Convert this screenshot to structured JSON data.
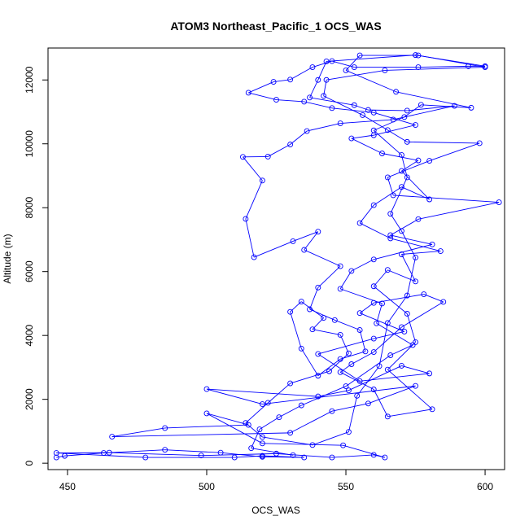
{
  "chart_data": {
    "type": "line",
    "title": "ATOM3 Northeast_Pacific_1 OCS_WAS",
    "xlabel": "OCS_WAS",
    "ylabel": "Altitude (m)",
    "xlim": [
      443,
      607
    ],
    "ylim": [
      -200,
      13000
    ],
    "x_ticks": [
      "450",
      "500",
      "550",
      "600"
    ],
    "y_ticks": [
      "0",
      "2000",
      "4000",
      "6000",
      "8000",
      "10000",
      "12000"
    ],
    "grid": false,
    "legend": "none",
    "series_color": "#0000ff",
    "series": [
      {
        "values": [
          [
            446,
            180
          ],
          [
            449,
            230
          ],
          [
            463,
            320
          ],
          [
            485,
            420
          ],
          [
            505,
            330
          ],
          [
            520,
            200
          ],
          [
            535,
            180
          ],
          [
            520,
            230
          ],
          [
            510,
            180
          ],
          [
            478,
            180
          ],
          [
            446,
            320
          ],
          [
            465,
            330
          ],
          [
            498,
            240
          ],
          [
            525,
            300
          ],
          [
            545,
            180
          ],
          [
            560,
            260
          ],
          [
            564,
            180
          ],
          [
            549,
            560
          ],
          [
            520,
            620
          ],
          [
            500,
            1560
          ],
          [
            515,
            1200
          ],
          [
            485,
            1100
          ],
          [
            466,
            830
          ],
          [
            530,
            950
          ],
          [
            545,
            1630
          ],
          [
            558,
            1870
          ],
          [
            575,
            2420
          ],
          [
            520,
            1850
          ],
          [
            500,
            2320
          ],
          [
            540,
            2090
          ],
          [
            551,
            2280
          ],
          [
            570,
            3050
          ],
          [
            580,
            2810
          ],
          [
            555,
            2570
          ],
          [
            540,
            3420
          ],
          [
            560,
            3900
          ],
          [
            571,
            4120
          ],
          [
            555,
            4700
          ],
          [
            560,
            5020
          ],
          [
            578,
            5290
          ],
          [
            585,
            5050
          ],
          [
            570,
            4260
          ],
          [
            560,
            3480
          ],
          [
            552,
            3100
          ],
          [
            548,
            2850
          ],
          [
            560,
            2310
          ],
          [
            565,
            1460
          ],
          [
            581,
            1690
          ],
          [
            565,
            2930
          ],
          [
            575,
            3790
          ],
          [
            572,
            4680
          ],
          [
            560,
            5540
          ],
          [
            565,
            6050
          ],
          [
            575,
            5690
          ],
          [
            570,
            6540
          ],
          [
            584,
            6640
          ],
          [
            566,
            7040
          ],
          [
            555,
            7520
          ],
          [
            560,
            8080
          ],
          [
            570,
            8650
          ],
          [
            580,
            8260
          ],
          [
            570,
            9150
          ],
          [
            576,
            9480
          ],
          [
            563,
            9700
          ],
          [
            552,
            10170
          ],
          [
            560,
            10270
          ],
          [
            575,
            10590
          ],
          [
            560,
            10980
          ],
          [
            545,
            11120
          ],
          [
            535,
            11320
          ],
          [
            525,
            11380
          ],
          [
            515,
            11600
          ],
          [
            524,
            11940
          ],
          [
            530,
            12010
          ],
          [
            538,
            12400
          ],
          [
            545,
            12590
          ],
          [
            553,
            12400
          ],
          [
            576,
            12400
          ],
          [
            594,
            12430
          ],
          [
            600,
            12430
          ],
          [
            575,
            12780
          ],
          [
            543,
            12580
          ],
          [
            540,
            12000
          ],
          [
            537,
            11450
          ],
          [
            553,
            11210
          ],
          [
            558,
            11060
          ],
          [
            572,
            11040
          ],
          [
            589,
            11190
          ],
          [
            567,
            10760
          ],
          [
            548,
            10640
          ],
          [
            536,
            10400
          ],
          [
            530,
            9980
          ],
          [
            522,
            9600
          ],
          [
            513,
            9590
          ],
          [
            520,
            8850
          ],
          [
            514,
            7650
          ],
          [
            517,
            6450
          ],
          [
            531,
            6950
          ],
          [
            540,
            7250
          ],
          [
            535,
            6680
          ],
          [
            548,
            6170
          ],
          [
            540,
            5500
          ],
          [
            537,
            4820
          ],
          [
            546,
            4480
          ],
          [
            555,
            4170
          ],
          [
            557,
            3500
          ],
          [
            548,
            3260
          ],
          [
            540,
            2740
          ],
          [
            534,
            3590
          ],
          [
            530,
            4740
          ],
          [
            534,
            5060
          ],
          [
            542,
            4550
          ],
          [
            538,
            4190
          ],
          [
            548,
            4020
          ],
          [
            551,
            3440
          ],
          [
            544,
            2880
          ],
          [
            530,
            2500
          ],
          [
            522,
            1890
          ],
          [
            514,
            1260
          ],
          [
            520,
            820
          ],
          [
            538,
            570
          ],
          [
            551,
            980
          ],
          [
            554,
            2110
          ],
          [
            562,
            3040
          ],
          [
            565,
            4390
          ],
          [
            572,
            5250
          ],
          [
            575,
            6440
          ],
          [
            570,
            7270
          ],
          [
            566,
            7810
          ],
          [
            572,
            8950
          ],
          [
            570,
            9650
          ],
          [
            560,
            10420
          ],
          [
            571,
            10840
          ],
          [
            577,
            11220
          ],
          [
            595,
            11130
          ],
          [
            568,
            11630
          ],
          [
            550,
            12300
          ],
          [
            555,
            12770
          ],
          [
            576,
            12770
          ],
          [
            600,
            12400
          ],
          [
            564,
            12300
          ],
          [
            543,
            12000
          ],
          [
            542,
            11500
          ],
          [
            556,
            10900
          ],
          [
            565,
            10430
          ],
          [
            572,
            10060
          ],
          [
            598,
            10020
          ],
          [
            580,
            9470
          ],
          [
            565,
            8950
          ],
          [
            567,
            8390
          ],
          [
            605,
            8170
          ],
          [
            576,
            7640
          ],
          [
            566,
            7140
          ],
          [
            581,
            6850
          ],
          [
            560,
            6380
          ],
          [
            552,
            6020
          ],
          [
            548,
            5460
          ],
          [
            563,
            5000
          ],
          [
            561,
            4380
          ],
          [
            574,
            3700
          ],
          [
            566,
            3380
          ],
          [
            550,
            2410
          ],
          [
            534,
            1810
          ],
          [
            526,
            1440
          ],
          [
            519,
            1060
          ],
          [
            516,
            470
          ],
          [
            531,
            250
          ]
        ]
      }
    ]
  }
}
